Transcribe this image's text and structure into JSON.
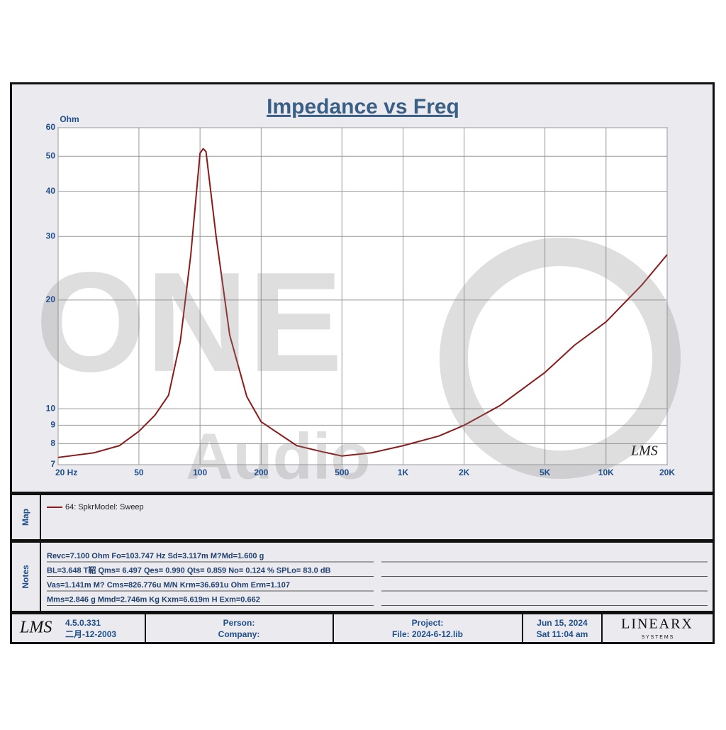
{
  "chart_data": {
    "type": "line",
    "title": "Impedance vs Freq",
    "ylabel": "Ohm",
    "xscale": "log",
    "yscale": "log",
    "grid": true,
    "x": [
      20,
      30,
      40,
      50,
      60,
      70,
      80,
      90,
      100,
      103.7,
      107,
      120,
      140,
      170,
      200,
      300,
      400,
      500,
      700,
      1000,
      1500,
      2000,
      3000,
      5000,
      7000,
      10000,
      15000,
      20000
    ],
    "series": [
      {
        "name": "64: SpkrModel: Sweep",
        "color": "#8b1a1a",
        "values": [
          7.33,
          7.55,
          7.9,
          8.66,
          9.6,
          10.9,
          15.4,
          26.6,
          51,
          52.5,
          51.5,
          30,
          16,
          10.8,
          9.2,
          7.9,
          7.6,
          7.4,
          7.55,
          7.9,
          8.4,
          9.0,
          10.2,
          12.6,
          15,
          17.4,
          22,
          26.7
        ]
      }
    ],
    "xlim": [
      20,
      20000
    ],
    "xticks": [
      {
        "value": 20,
        "label": "20  Hz"
      },
      50,
      100,
      200,
      500,
      {
        "value": 1000,
        "label": "1K"
      },
      {
        "value": 2000,
        "label": "2K"
      },
      {
        "value": 5000,
        "label": "5K"
      },
      {
        "value": 10000,
        "label": "10K"
      },
      {
        "value": 20000,
        "label": "20K"
      }
    ],
    "ylim": [
      7,
      60
    ],
    "yticks": [
      7,
      8,
      9,
      10,
      20,
      30,
      40,
      50,
      60
    ]
  },
  "report": {
    "watermark": [
      "ONE",
      "Audio"
    ],
    "plot_logo": "LMS",
    "map_label": "Map",
    "notes_label": "Notes",
    "notes": [
      "Revc=7.100 Ohm  Fo=103.747 Hz  Sd=3.117m M?Md=1.600 g",
      "BL=3.648 T鞀  Qms= 6.497  Qes= 0.990  Qts= 0.859  No= 0.124 %  SPLo= 83.0 dB",
      "Vas=1.141m M? Cms=826.776u M/N  Krm=36.691u Ohm  Erm=1.107",
      "Mms=2.846 g  Mmd=2.746m Kg  Kxm=6.619m H  Exm=0.662"
    ],
    "footer": {
      "logo": "LMS",
      "version": "4.5.0.331",
      "version_date": "二月-12-2003",
      "person": "Person:",
      "company": "Company:",
      "project": "Project:",
      "file": "File: 2024-6-12.lib",
      "date": "Jun 15, 2024",
      "time": "Sat 11:04 am",
      "brand": "LINEARX",
      "brand_sub": "S Y S T E M S"
    }
  }
}
